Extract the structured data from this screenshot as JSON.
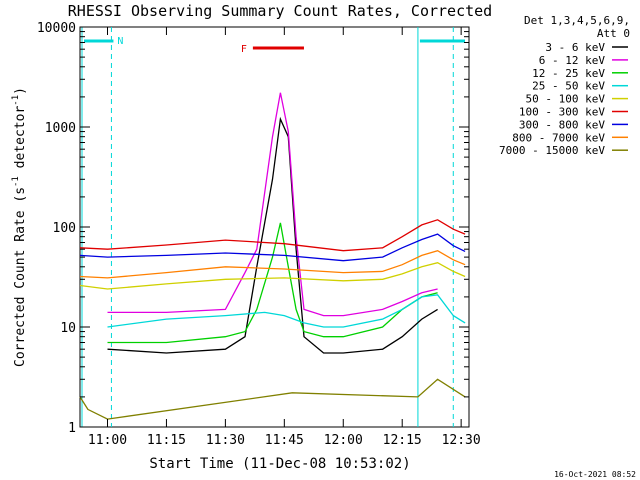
{
  "chart_data": {
    "type": "line",
    "title": "RHESSI Observing Summary Count Rates, Corrected",
    "xlabel": "Start Time (11-Dec-08 10:53:02)",
    "ylabel_main": "Corrected Count Rate (s",
    "ylabel_sup": "-1",
    "ylabel_mid": " detector",
    "ylabel_sup2": "-1",
    "ylabel_end": ")",
    "yscale": "log",
    "ylim": [
      1,
      10000
    ],
    "xlim": [
      "10:53",
      "12:32"
    ],
    "x_ticks": [
      "11:00",
      "11:15",
      "11:30",
      "11:45",
      "12:00",
      "12:15",
      "12:30"
    ],
    "y_ticks": [
      "1",
      "10",
      "100",
      "1000",
      "10000"
    ],
    "legend_header": [
      "Det 1,3,4,5,6,9,",
      "Att 0"
    ],
    "legend_position": "right",
    "annotations": {
      "night_label": "N",
      "flare_label": "F"
    },
    "timestamp": "16-Oct-2021 08:52",
    "series": [
      {
        "name": "3 - 6 keV",
        "color": "#000000",
        "points": [
          [
            "11:00",
            6
          ],
          [
            "11:15",
            5.5
          ],
          [
            "11:30",
            6
          ],
          [
            "11:35",
            8
          ],
          [
            "11:38",
            40
          ],
          [
            "11:42",
            300
          ],
          [
            "11:44",
            1200
          ],
          [
            "11:46",
            800
          ],
          [
            "11:48",
            60
          ],
          [
            "11:50",
            8
          ],
          [
            "11:55",
            5.5
          ],
          [
            "12:00",
            5.5
          ],
          [
            "12:10",
            6
          ],
          [
            "12:15",
            8
          ],
          [
            "12:20",
            12
          ],
          [
            "12:24",
            15
          ]
        ]
      },
      {
        "name": "6 - 12 keV",
        "color": "#e000e0",
        "points": [
          [
            "11:00",
            14
          ],
          [
            "11:15",
            14
          ],
          [
            "11:30",
            15
          ],
          [
            "11:35",
            35
          ],
          [
            "11:38",
            60
          ],
          [
            "11:42",
            800
          ],
          [
            "11:44",
            2200
          ],
          [
            "11:46",
            900
          ],
          [
            "11:48",
            80
          ],
          [
            "11:50",
            15
          ],
          [
            "11:55",
            13
          ],
          [
            "12:00",
            13
          ],
          [
            "12:10",
            15
          ],
          [
            "12:15",
            18
          ],
          [
            "12:20",
            22
          ],
          [
            "12:24",
            24
          ]
        ]
      },
      {
        "name": "12 - 25 keV",
        "color": "#00d000",
        "points": [
          [
            "11:00",
            7
          ],
          [
            "11:15",
            7
          ],
          [
            "11:30",
            8
          ],
          [
            "11:35",
            9
          ],
          [
            "11:38",
            15
          ],
          [
            "11:42",
            50
          ],
          [
            "11:44",
            110
          ],
          [
            "11:46",
            40
          ],
          [
            "11:48",
            15
          ],
          [
            "11:50",
            9
          ],
          [
            "11:55",
            8
          ],
          [
            "12:00",
            8
          ],
          [
            "12:10",
            10
          ],
          [
            "12:15",
            15
          ],
          [
            "12:20",
            20
          ],
          [
            "12:24",
            22
          ]
        ]
      },
      {
        "name": "25 - 50 keV",
        "color": "#00d8d8",
        "points": [
          [
            "11:00",
            10
          ],
          [
            "11:15",
            12
          ],
          [
            "11:30",
            13
          ],
          [
            "11:40",
            14
          ],
          [
            "11:45",
            13
          ],
          [
            "11:50",
            11
          ],
          [
            "11:55",
            10
          ],
          [
            "12:00",
            10
          ],
          [
            "12:10",
            12
          ],
          [
            "12:15",
            15
          ],
          [
            "12:20",
            20
          ],
          [
            "12:24",
            21
          ],
          [
            "12:28",
            13
          ],
          [
            "12:31",
            11
          ]
        ]
      },
      {
        "name": "50 - 100 keV",
        "color": "#d0d000",
        "points": [
          [
            "10:53",
            26
          ],
          [
            "11:00",
            24
          ],
          [
            "11:15",
            27
          ],
          [
            "11:30",
            30
          ],
          [
            "11:45",
            31
          ],
          [
            "12:00",
            29
          ],
          [
            "12:10",
            30
          ],
          [
            "12:15",
            34
          ],
          [
            "12:20",
            40
          ],
          [
            "12:24",
            44
          ],
          [
            "12:28",
            36
          ],
          [
            "12:31",
            32
          ]
        ]
      },
      {
        "name": "100 - 300 keV",
        "color": "#e00000",
        "points": [
          [
            "10:53",
            62
          ],
          [
            "11:00",
            60
          ],
          [
            "11:15",
            66
          ],
          [
            "11:30",
            74
          ],
          [
            "11:45",
            68
          ],
          [
            "12:00",
            58
          ],
          [
            "12:10",
            62
          ],
          [
            "12:15",
            80
          ],
          [
            "12:20",
            105
          ],
          [
            "12:24",
            118
          ],
          [
            "12:28",
            95
          ],
          [
            "12:31",
            85
          ]
        ]
      },
      {
        "name": "300 - 800 keV",
        "color": "#0000e0",
        "points": [
          [
            "10:53",
            52
          ],
          [
            "11:00",
            50
          ],
          [
            "11:15",
            52
          ],
          [
            "11:30",
            55
          ],
          [
            "11:45",
            52
          ],
          [
            "12:00",
            46
          ],
          [
            "12:10",
            50
          ],
          [
            "12:15",
            62
          ],
          [
            "12:20",
            75
          ],
          [
            "12:24",
            85
          ],
          [
            "12:28",
            65
          ],
          [
            "12:31",
            57
          ]
        ]
      },
      {
        "name": "800 - 7000 keV",
        "color": "#ff8000",
        "points": [
          [
            "10:53",
            32
          ],
          [
            "11:00",
            31
          ],
          [
            "11:15",
            35
          ],
          [
            "11:30",
            40
          ],
          [
            "11:45",
            38
          ],
          [
            "12:00",
            35
          ],
          [
            "12:10",
            36
          ],
          [
            "12:15",
            42
          ],
          [
            "12:20",
            52
          ],
          [
            "12:24",
            58
          ],
          [
            "12:28",
            47
          ],
          [
            "12:31",
            42
          ]
        ]
      },
      {
        "name": "7000 - 15000 keV",
        "color": "#808000",
        "points": [
          [
            "10:53",
            2
          ],
          [
            "10:55",
            1.5
          ],
          [
            "11:00",
            1.2
          ],
          [
            "11:47",
            2.2
          ],
          [
            "12:19",
            2
          ],
          [
            "12:24",
            3
          ],
          [
            "12:31",
            2
          ]
        ]
      }
    ]
  }
}
